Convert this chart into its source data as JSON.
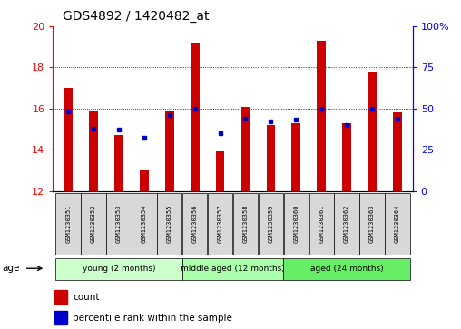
{
  "title": "GDS4892 / 1420482_at",
  "samples": [
    "GSM1230351",
    "GSM1230352",
    "GSM1230353",
    "GSM1230354",
    "GSM1230355",
    "GSM1230356",
    "GSM1230357",
    "GSM1230358",
    "GSM1230359",
    "GSM1230360",
    "GSM1230361",
    "GSM1230362",
    "GSM1230363",
    "GSM1230364"
  ],
  "count_values": [
    17.0,
    15.9,
    14.7,
    13.0,
    15.9,
    19.2,
    13.9,
    16.1,
    15.2,
    15.3,
    19.3,
    15.3,
    17.8,
    15.8
  ],
  "percentile_values": [
    48,
    38,
    37,
    32,
    46,
    50,
    35,
    44,
    42,
    43,
    50,
    40,
    50,
    44
  ],
  "y_min": 12,
  "y_max": 20,
  "y_ticks": [
    12,
    14,
    16,
    18,
    20
  ],
  "y2_ticks": [
    0,
    25,
    50,
    75,
    100
  ],
  "bar_color": "#cc0000",
  "percentile_color": "#0000cc",
  "group_labels": [
    "young (2 months)",
    "middle aged (12 months)",
    "aged (24 months)"
  ],
  "group_ranges": [
    [
      0,
      4
    ],
    [
      5,
      8
    ],
    [
      9,
      13
    ]
  ],
  "group_colors_light": [
    "#ccffcc",
    "#aaffaa",
    "#66ee66"
  ],
  "legend_count_label": "count",
  "legend_pct_label": "percentile rank within the sample",
  "xlabel_age": "age",
  "sample_box_color": "#d8d8d8"
}
